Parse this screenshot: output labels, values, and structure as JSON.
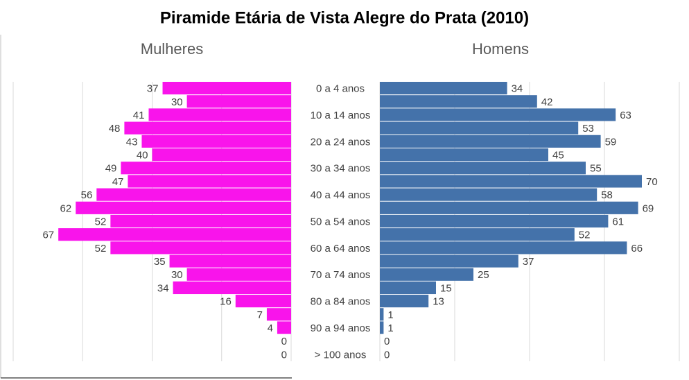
{
  "title": "Piramide Etária de Vista Alegre do Prata (2010)",
  "chart_data": [
    {
      "type": "bar",
      "orientation": "horizontal",
      "direction": "reversed",
      "title": "Mulheres",
      "color": "#f914eb",
      "categories": [
        "0 a 4 anos",
        null,
        "10 a 14 anos",
        null,
        "20 a 24 anos",
        null,
        "30 a 34 anos",
        null,
        "40 a 44 anos",
        null,
        "50 a 54 anos",
        null,
        "60 a 64 anos",
        null,
        "70 a 74 anos",
        null,
        "80 a 84 anos",
        null,
        "90 a 94 anos",
        null,
        "> 100 anos"
      ],
      "values": [
        37,
        30,
        41,
        48,
        43,
        40,
        49,
        47,
        56,
        62,
        52,
        67,
        52,
        35,
        30,
        34,
        16,
        7,
        4,
        0,
        0
      ],
      "xlim": [
        0,
        80
      ],
      "xticks": [
        0,
        20,
        40,
        60,
        80
      ],
      "grid": true
    },
    {
      "type": "bar",
      "orientation": "horizontal",
      "direction": "normal",
      "title": "Homens",
      "color": "#4472aa",
      "values": [
        34,
        42,
        63,
        53,
        59,
        45,
        55,
        70,
        58,
        69,
        61,
        52,
        66,
        37,
        25,
        15,
        13,
        1,
        1,
        0,
        0
      ],
      "xlim": [
        0,
        80
      ],
      "xticks": [
        0,
        20,
        40,
        60,
        80
      ],
      "grid": true
    }
  ]
}
